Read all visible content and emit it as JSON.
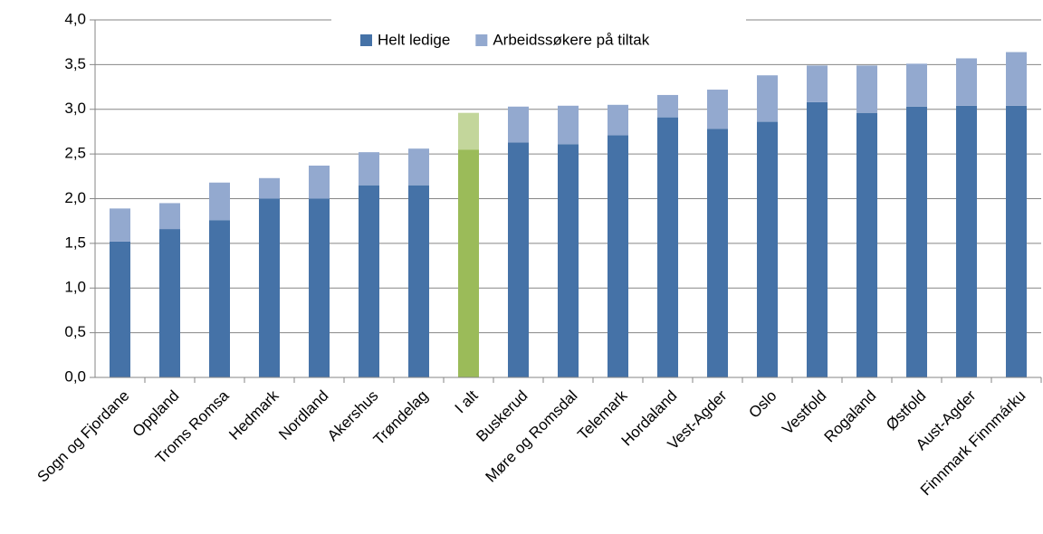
{
  "chart_data": {
    "type": "bar",
    "stacked": true,
    "categories": [
      "Sogn og Fjordane",
      "Oppland",
      "Troms Romsa",
      "Hedmark",
      "Nordland",
      "Akershus",
      "Trøndelag",
      "I alt",
      "Buskerud",
      "Møre og Romsdal",
      "Telemark",
      "Hordaland",
      "Vest-Agder",
      "Oslo",
      "Vestfold",
      "Rogaland",
      "Østfold",
      "Aust-Agder",
      "Finnmark Finnmárku"
    ],
    "series": [
      {
        "name": "Helt ledige",
        "color": "#4572a7",
        "colors": [
          "#4572a7",
          "#4572a7",
          "#4572a7",
          "#4572a7",
          "#4572a7",
          "#4572a7",
          "#4572a7",
          "#9bbb59",
          "#4572a7",
          "#4572a7",
          "#4572a7",
          "#4572a7",
          "#4572a7",
          "#4572a7",
          "#4572a7",
          "#4572a7",
          "#4572a7",
          "#4572a7",
          "#4572a7"
        ],
        "values": [
          1.52,
          1.66,
          1.76,
          2.0,
          2.0,
          2.15,
          2.15,
          2.55,
          2.63,
          2.61,
          2.71,
          2.91,
          2.78,
          2.86,
          3.08,
          2.96,
          3.03,
          3.04,
          3.04
        ]
      },
      {
        "name": "Arbeidssøkere på tiltak",
        "color": "#93a9cf",
        "colors": [
          "#93a9cf",
          "#93a9cf",
          "#93a9cf",
          "#93a9cf",
          "#93a9cf",
          "#93a9cf",
          "#93a9cf",
          "#c3d69b",
          "#93a9cf",
          "#93a9cf",
          "#93a9cf",
          "#93a9cf",
          "#93a9cf",
          "#93a9cf",
          "#93a9cf",
          "#93a9cf",
          "#93a9cf",
          "#93a9cf",
          "#93a9cf"
        ],
        "values": [
          0.37,
          0.29,
          0.42,
          0.23,
          0.37,
          0.37,
          0.41,
          0.41,
          0.4,
          0.43,
          0.34,
          0.25,
          0.44,
          0.52,
          0.41,
          0.53,
          0.48,
          0.53,
          0.6
        ]
      }
    ],
    "ylim": [
      0,
      4
    ],
    "yticks": [
      {
        "value": 0,
        "label": "0,0"
      },
      {
        "value": 0.5,
        "label": "0,5"
      },
      {
        "value": 1,
        "label": "1,0"
      },
      {
        "value": 1.5,
        "label": "1,5"
      },
      {
        "value": 2,
        "label": "2,0"
      },
      {
        "value": 2.5,
        "label": "2,5"
      },
      {
        "value": 3,
        "label": "3,0"
      },
      {
        "value": 3.5,
        "label": "3,5"
      },
      {
        "value": 4,
        "label": "4,0"
      }
    ],
    "grid": true,
    "legend": "top"
  }
}
